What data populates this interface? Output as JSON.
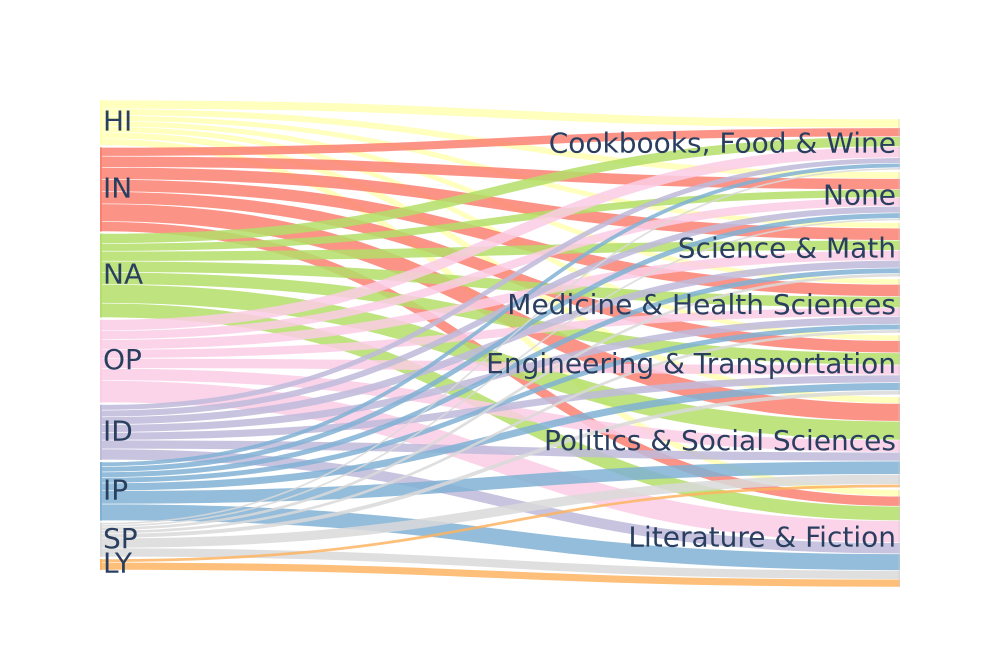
{
  "chart_data": {
    "type": "sankey",
    "source_nodes": [
      {
        "label": "HI",
        "color": "#ffffb3"
      },
      {
        "label": "IN",
        "color": "#fb8072"
      },
      {
        "label": "NA",
        "color": "#b3de69"
      },
      {
        "label": "OP",
        "color": "#fccde5"
      },
      {
        "label": "ID",
        "color": "#bebada"
      },
      {
        "label": "IP",
        "color": "#80b1d3"
      },
      {
        "label": "SP",
        "color": "#d9d9d9"
      },
      {
        "label": "LY",
        "color": "#fdb462"
      }
    ],
    "target_nodes": [
      {
        "label": "Cookbooks, Food & Wine"
      },
      {
        "label": "None"
      },
      {
        "label": "Science & Math"
      },
      {
        "label": "Medicine & Health Sciences"
      },
      {
        "label": "Engineering & Transportation"
      },
      {
        "label": "Politics & Social Sciences"
      },
      {
        "label": "Literature & Fiction"
      }
    ],
    "links": [
      {
        "source": "HI",
        "target": "Cookbooks, Food & Wine",
        "value": 8
      },
      {
        "source": "HI",
        "target": "None",
        "value": 6
      },
      {
        "source": "HI",
        "target": "Science & Math",
        "value": 5
      },
      {
        "source": "HI",
        "target": "Medicine & Health Sciences",
        "value": 5
      },
      {
        "source": "HI",
        "target": "Engineering & Transportation",
        "value": 5
      },
      {
        "source": "HI",
        "target": "Politics & Social Sciences",
        "value": 6
      },
      {
        "source": "HI",
        "target": "Literature & Fiction",
        "value": 6
      },
      {
        "source": "IN",
        "target": "Cookbooks, Food & Wine",
        "value": 8
      },
      {
        "source": "IN",
        "target": "None",
        "value": 10
      },
      {
        "source": "IN",
        "target": "Science & Math",
        "value": 11
      },
      {
        "source": "IN",
        "target": "Medicine & Health Sciences",
        "value": 11
      },
      {
        "source": "IN",
        "target": "Engineering & Transportation",
        "value": 11
      },
      {
        "source": "IN",
        "target": "Politics & Social Sciences",
        "value": 16
      },
      {
        "source": "IN",
        "target": "Literature & Fiction",
        "value": 9
      },
      {
        "source": "NA",
        "target": "Cookbooks, Food & Wine",
        "value": 9
      },
      {
        "source": "NA",
        "target": "None",
        "value": 7
      },
      {
        "source": "NA",
        "target": "Science & Math",
        "value": 9
      },
      {
        "source": "NA",
        "target": "Medicine & Health Sciences",
        "value": 10
      },
      {
        "source": "NA",
        "target": "Engineering & Transportation",
        "value": 11
      },
      {
        "source": "NA",
        "target": "Politics & Social Sciences",
        "value": 17
      },
      {
        "source": "NA",
        "target": "Literature & Fiction",
        "value": 13
      },
      {
        "source": "OP",
        "target": "Cookbooks, Food & Wine",
        "value": 10
      },
      {
        "source": "OP",
        "target": "None",
        "value": 8
      },
      {
        "source": "OP",
        "target": "Science & Math",
        "value": 9
      },
      {
        "source": "OP",
        "target": "Medicine & Health Sciences",
        "value": 8
      },
      {
        "source": "OP",
        "target": "Engineering & Transportation",
        "value": 9
      },
      {
        "source": "OP",
        "target": "Politics & Social Sciences",
        "value": 11
      },
      {
        "source": "OP",
        "target": "Literature & Fiction",
        "value": 20
      },
      {
        "source": "ID",
        "target": "Cookbooks, Food & Wine",
        "value": 5
      },
      {
        "source": "ID",
        "target": "None",
        "value": 6
      },
      {
        "source": "ID",
        "target": "Science & Math",
        "value": 7
      },
      {
        "source": "ID",
        "target": "Medicine & Health Sciences",
        "value": 7
      },
      {
        "source": "ID",
        "target": "Engineering & Transportation",
        "value": 7
      },
      {
        "source": "ID",
        "target": "Politics & Social Sciences",
        "value": 8
      },
      {
        "source": "ID",
        "target": "Literature & Fiction",
        "value": 10
      },
      {
        "source": "IP",
        "target": "Cookbooks, Food & Wine",
        "value": 4
      },
      {
        "source": "IP",
        "target": "None",
        "value": 5
      },
      {
        "source": "IP",
        "target": "Science & Math",
        "value": 5
      },
      {
        "source": "IP",
        "target": "Medicine & Health Sciences",
        "value": 5
      },
      {
        "source": "IP",
        "target": "Engineering & Transportation",
        "value": 7
      },
      {
        "source": "IP",
        "target": "Politics & Social Sciences",
        "value": 12
      },
      {
        "source": "IP",
        "target": "Literature & Fiction",
        "value": 15
      },
      {
        "source": "SP",
        "target": "Cookbooks, Food & Wine",
        "value": 2
      },
      {
        "source": "SP",
        "target": "None",
        "value": 2
      },
      {
        "source": "SP",
        "target": "Science & Math",
        "value": 3
      },
      {
        "source": "SP",
        "target": "Medicine & Health Sciences",
        "value": 3
      },
      {
        "source": "SP",
        "target": "Engineering & Transportation",
        "value": 4
      },
      {
        "source": "SP",
        "target": "Politics & Social Sciences",
        "value": 9
      },
      {
        "source": "SP",
        "target": "Literature & Fiction",
        "value": 8
      },
      {
        "source": "LY",
        "target": "Politics & Social Sciences",
        "value": 3
      },
      {
        "source": "LY",
        "target": "Literature & Fiction",
        "value": 7
      }
    ],
    "link_opacity": 0.85,
    "background": "#ffffff",
    "label_color": "#2a3f5f"
  }
}
